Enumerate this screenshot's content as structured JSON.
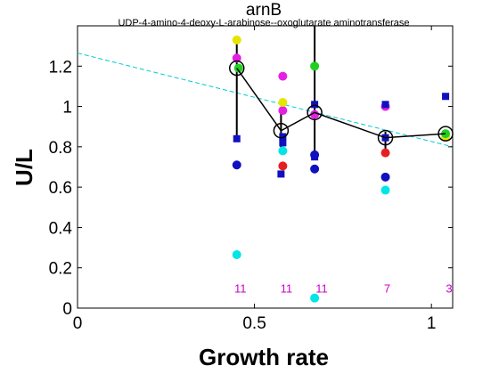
{
  "chart_data": {
    "type": "scatter",
    "title": "arnB",
    "subtitle": "UDP-4-amino-4-deoxy-L-arabinose--oxoglutarate aminotransferase",
    "xlabel": "Growth rate",
    "ylabel": "U/L",
    "xlim": [
      0,
      1.06
    ],
    "ylim": [
      0,
      1.4
    ],
    "xticks": [
      0,
      0.5,
      1
    ],
    "yticks": [
      0,
      0.2,
      0.4,
      0.6,
      0.8,
      1,
      1.2
    ],
    "xtick_labels": [
      "0",
      "0.5",
      "1"
    ],
    "ytick_labels": [
      "0",
      "0.2",
      "0.4",
      "0.6",
      "0.8",
      "1",
      "1.2"
    ],
    "grid": false,
    "colors": {
      "cyan": "#00e5e5",
      "blue": "#1010c0",
      "red": "#e52020",
      "magenta": "#e520e5",
      "yellow": "#e5e500",
      "green": "#20d020",
      "mean_line": "#000000",
      "trend_line": "#00cccc",
      "count_text": "#cc00cc"
    },
    "points": [
      {
        "x": 0.45,
        "y": 0.265,
        "color": "cyan",
        "marker": "circle"
      },
      {
        "x": 0.45,
        "y": 0.71,
        "color": "blue",
        "marker": "circle"
      },
      {
        "x": 0.45,
        "y": 0.84,
        "color": "blue",
        "marker": "square"
      },
      {
        "x": 0.45,
        "y": 1.24,
        "color": "magenta",
        "marker": "circle"
      },
      {
        "x": 0.45,
        "y": 1.33,
        "color": "yellow",
        "marker": "circle"
      },
      {
        "x": 0.455,
        "y": 1.19,
        "color": "green",
        "marker": "circle"
      },
      {
        "x": 0.575,
        "y": 0.665,
        "color": "blue",
        "marker": "square"
      },
      {
        "x": 0.58,
        "y": 0.705,
        "color": "red",
        "marker": "circle"
      },
      {
        "x": 0.58,
        "y": 0.78,
        "color": "cyan",
        "marker": "circle"
      },
      {
        "x": 0.58,
        "y": 0.82,
        "color": "blue",
        "marker": "square"
      },
      {
        "x": 0.58,
        "y": 0.85,
        "color": "blue",
        "marker": "square"
      },
      {
        "x": 0.58,
        "y": 0.98,
        "color": "magenta",
        "marker": "circle"
      },
      {
        "x": 0.58,
        "y": 1.02,
        "color": "yellow",
        "marker": "circle"
      },
      {
        "x": 0.58,
        "y": 1.15,
        "color": "magenta",
        "marker": "circle"
      },
      {
        "x": 0.67,
        "y": 0.05,
        "color": "cyan",
        "marker": "circle"
      },
      {
        "x": 0.67,
        "y": 0.69,
        "color": "blue",
        "marker": "circle"
      },
      {
        "x": 0.67,
        "y": 0.75,
        "color": "blue",
        "marker": "square"
      },
      {
        "x": 0.67,
        "y": 0.76,
        "color": "blue",
        "marker": "circle"
      },
      {
        "x": 0.67,
        "y": 0.96,
        "color": "magenta",
        "marker": "circle"
      },
      {
        "x": 0.67,
        "y": 1.01,
        "color": "blue",
        "marker": "square"
      },
      {
        "x": 0.67,
        "y": 1.2,
        "color": "green",
        "marker": "circle"
      },
      {
        "x": 0.87,
        "y": 0.585,
        "color": "cyan",
        "marker": "circle"
      },
      {
        "x": 0.87,
        "y": 0.65,
        "color": "blue",
        "marker": "circle"
      },
      {
        "x": 0.87,
        "y": 0.77,
        "color": "red",
        "marker": "circle"
      },
      {
        "x": 0.87,
        "y": 0.845,
        "color": "blue",
        "marker": "square"
      },
      {
        "x": 0.87,
        "y": 1.0,
        "color": "magenta",
        "marker": "circle"
      },
      {
        "x": 0.87,
        "y": 1.01,
        "color": "blue",
        "marker": "square"
      },
      {
        "x": 1.04,
        "y": 0.85,
        "color": "yellow",
        "marker": "circle"
      },
      {
        "x": 1.04,
        "y": 0.865,
        "color": "green",
        "marker": "circle"
      },
      {
        "x": 1.04,
        "y": 1.05,
        "color": "blue",
        "marker": "square"
      }
    ],
    "mean_series": {
      "x": [
        0.45,
        0.575,
        0.67,
        0.87,
        1.04
      ],
      "y": [
        1.19,
        0.88,
        0.97,
        0.845,
        0.865
      ],
      "error_low": [
        0.84,
        0.79,
        0.75,
        0.785,
        0.845
      ],
      "error_high": [
        1.34,
        0.97,
        1.4,
        0.875,
        0.885
      ]
    },
    "trend_line": {
      "x": [
        0,
        1.06
      ],
      "y": [
        1.265,
        0.8
      ]
    },
    "counts": [
      {
        "x": 0.46,
        "label": "11"
      },
      {
        "x": 0.59,
        "label": "11"
      },
      {
        "x": 0.69,
        "label": "11"
      },
      {
        "x": 0.875,
        "label": "7"
      },
      {
        "x": 1.05,
        "label": "3"
      }
    ],
    "counts_y": 0.1
  }
}
